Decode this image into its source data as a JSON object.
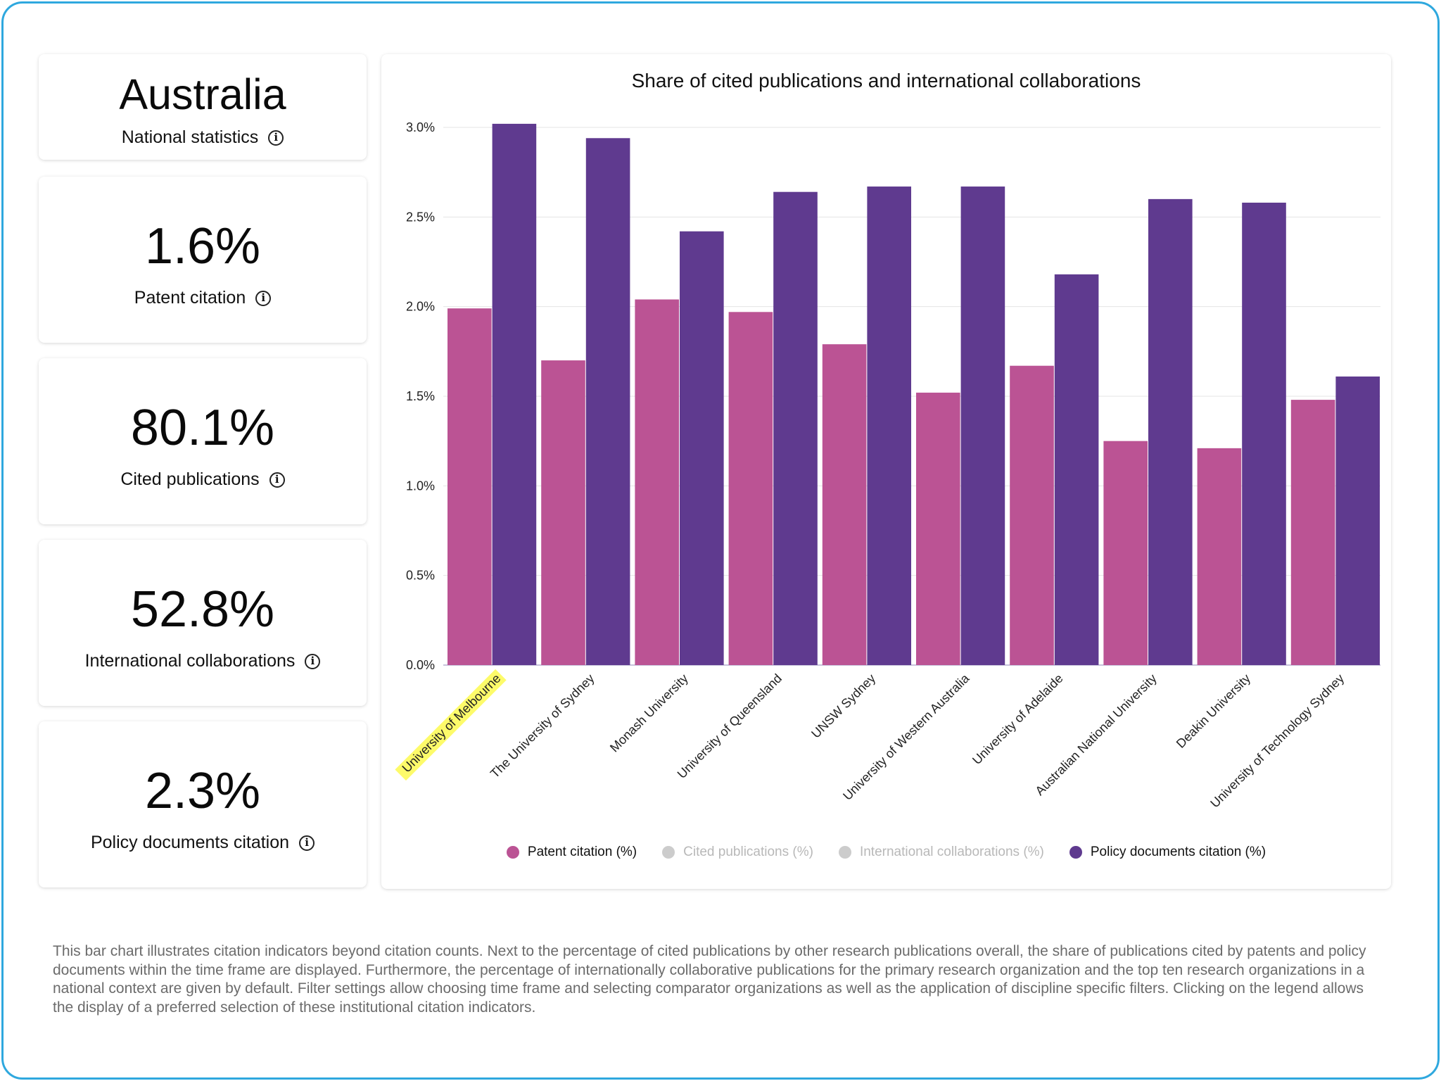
{
  "country": {
    "name": "Australia",
    "subtitle": "National statistics"
  },
  "stats": [
    {
      "value": "1.6%",
      "label": "Patent citation"
    },
    {
      "value": "80.1%",
      "label": "Cited publications"
    },
    {
      "value": "52.8%",
      "label": "International collaborations"
    },
    {
      "value": "2.3%",
      "label": "Policy documents citation"
    }
  ],
  "chart_data": {
    "type": "bar",
    "title": "Share of cited publications and international collaborations",
    "xlabel": "",
    "ylabel": "",
    "ylim": [
      0,
      3.0
    ],
    "yticks": [
      "0.0%",
      "0.5%",
      "1.0%",
      "1.5%",
      "2.0%",
      "2.5%",
      "3.0%"
    ],
    "categories": [
      "University of Melbourne",
      "The University of Sydney",
      "Monash University",
      "University of Queensland",
      "UNSW Sydney",
      "University of Western Australia",
      "University of Adelaide",
      "Australian National University",
      "Deakin University",
      "University of Technology Sydney"
    ],
    "highlighted_category": "University of Melbourne",
    "series": [
      {
        "name": "Patent citation (%)",
        "color": "#bb5394",
        "visible": true,
        "values": [
          1.99,
          1.7,
          2.04,
          1.97,
          1.79,
          1.52,
          1.67,
          1.25,
          1.21,
          1.48
        ]
      },
      {
        "name": "Policy documents citation (%)",
        "color": "#5f3a8f",
        "visible": true,
        "values": [
          3.02,
          2.94,
          2.42,
          2.64,
          2.67,
          2.67,
          2.18,
          2.6,
          2.58,
          1.61
        ]
      }
    ],
    "legend": [
      {
        "name": "Patent citation (%)",
        "color": "#bb5394",
        "active": true
      },
      {
        "name": "Cited publications (%)",
        "color": "#cccccc",
        "active": false
      },
      {
        "name": "International collaborations (%)",
        "color": "#cccccc",
        "active": false
      },
      {
        "name": "Policy documents citation (%)",
        "color": "#5f3a8f",
        "active": true
      }
    ],
    "grid": true,
    "legend_position": "bottom"
  },
  "description": "This bar chart illustrates citation indicators beyond citation counts. Next to the percentage of cited publications by other research publications overall, the share of publications cited by patents and policy documents within the time frame are displayed. Furthermore, the percentage of internationally collaborative publications for the primary research organization and the top ten research organizations in a national context are given by default. Filter settings allow choosing time frame and selecting comparator organizations as well as the application of discipline specific filters. Clicking on the legend allows the display of a preferred selection of these institutional citation indicators."
}
